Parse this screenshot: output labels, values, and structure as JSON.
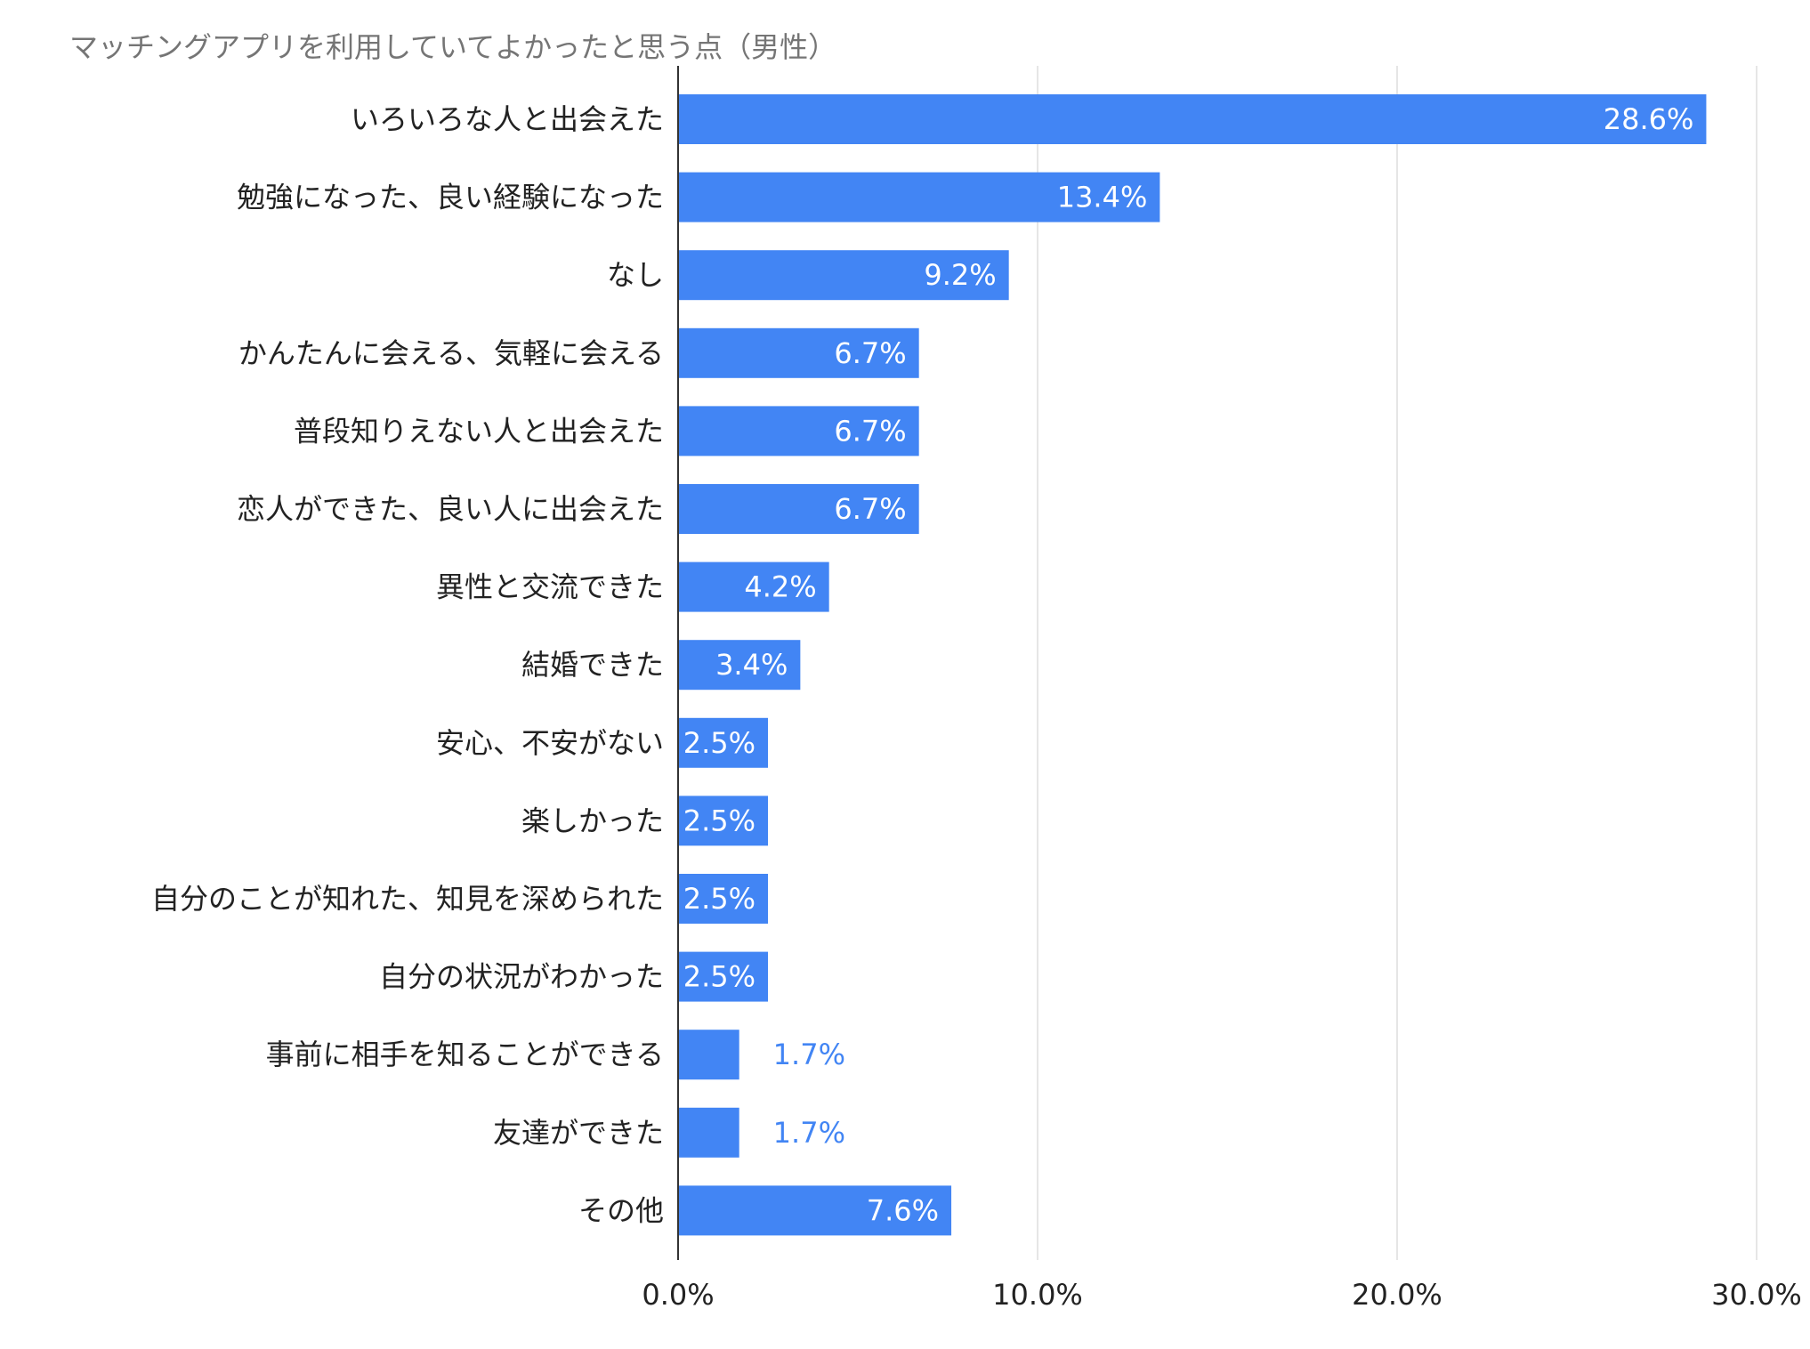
{
  "chart_data": {
    "type": "bar",
    "orientation": "horizontal",
    "title": "マッチングアプリを利用していてよかったと思う点（男性）",
    "categories": [
      "いろいろな人と出会えた",
      "勉強になった、良い経験になった",
      "なし",
      "かんたんに会える、気軽に会える",
      "普段知りえない人と出会えた",
      "恋人ができた、良い人に出会えた",
      "異性と交流できた",
      "結婚できた",
      "安心、不安がない",
      "楽しかった",
      "自分のことが知れた、知見を深められた",
      "自分の状況がわかった",
      "事前に相手を知ることができる",
      "友達ができた",
      "その他"
    ],
    "values": [
      28.6,
      13.4,
      9.2,
      6.7,
      6.7,
      6.7,
      4.2,
      3.4,
      2.5,
      2.5,
      2.5,
      2.5,
      1.7,
      1.7,
      7.6
    ],
    "value_labels": [
      "28.6%",
      "13.4%",
      "9.2%",
      "6.7%",
      "6.7%",
      "6.7%",
      "4.2%",
      "3.4%",
      "2.5%",
      "2.5%",
      "2.5%",
      "2.5%",
      "1.7%",
      "1.7%",
      "7.6%"
    ],
    "xlim": [
      0,
      30
    ],
    "xticks": [
      0,
      10,
      20,
      30
    ],
    "xtick_labels": [
      "0.0%",
      "10.0%",
      "20.0%",
      "30.0%"
    ],
    "grid": true,
    "legend": "none",
    "colors": {
      "bar": "#4285f4",
      "label_outside": "#4285f4",
      "label_inside": "#ffffff",
      "grid": "#dddddd",
      "axis": "#333333",
      "title": "#757575"
    }
  }
}
